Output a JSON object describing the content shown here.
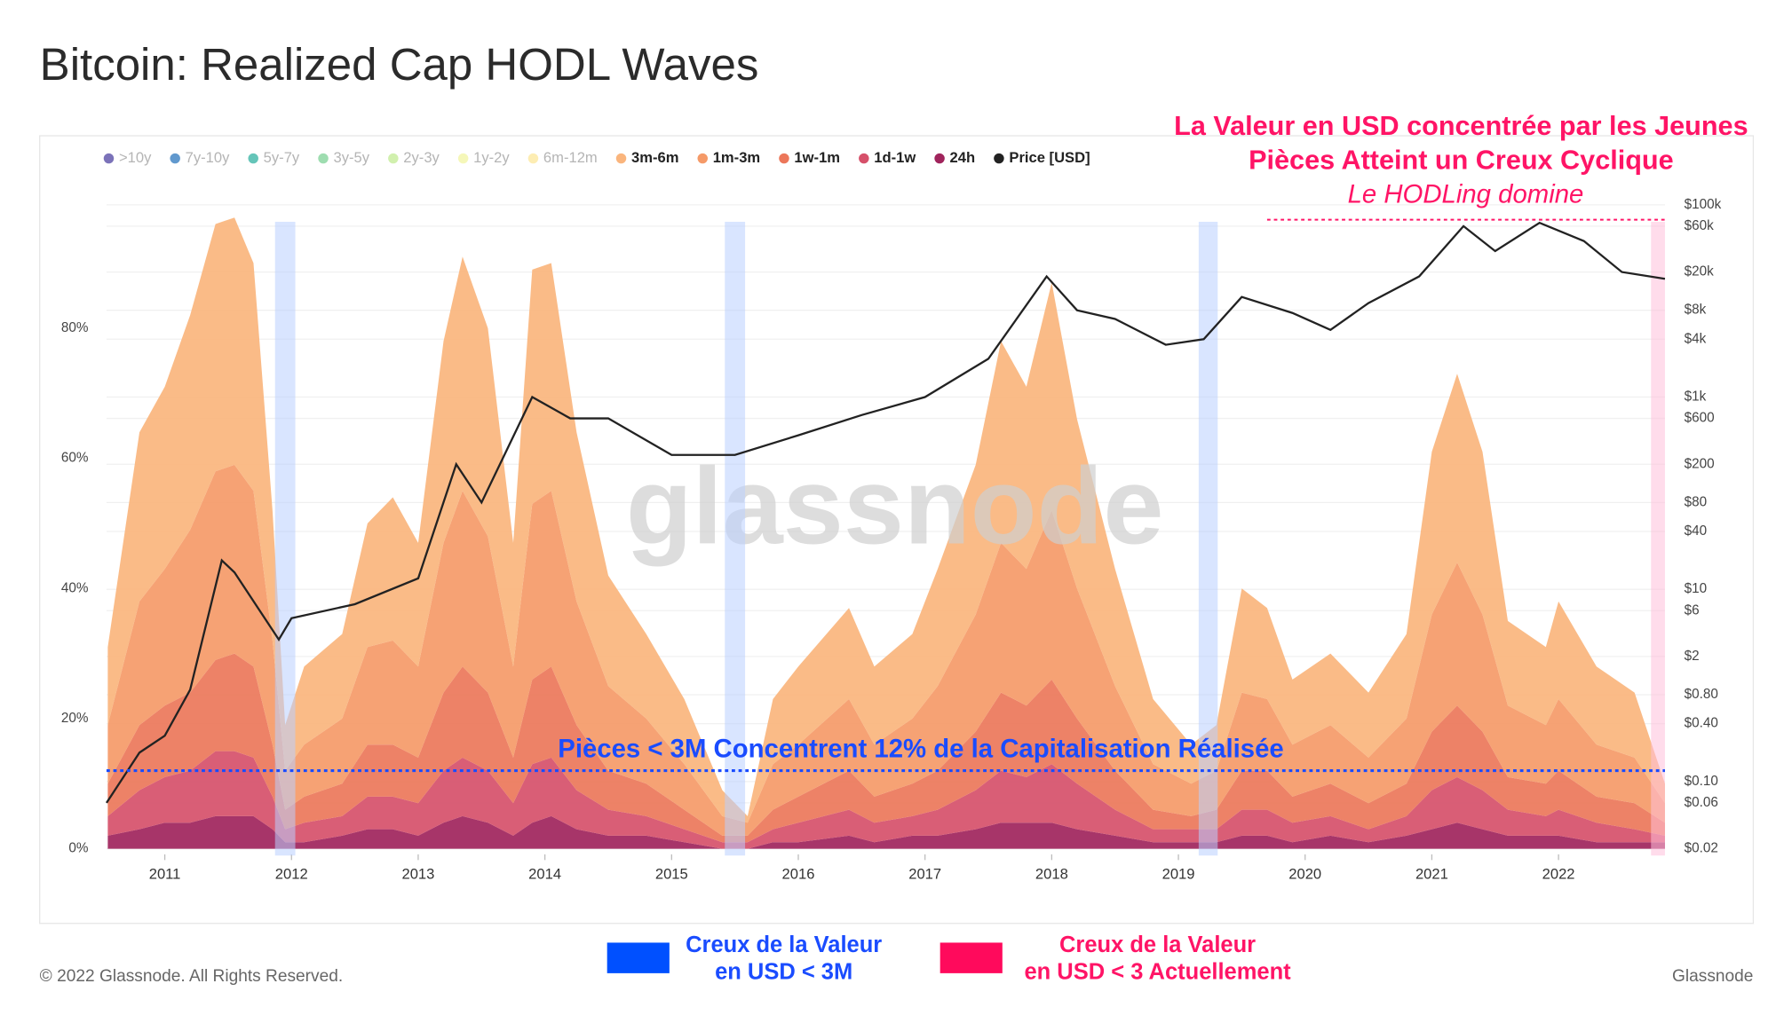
{
  "chart_data": {
    "type": "stacked_area",
    "title": "Bitcoin: Realized Cap HODL Waves",
    "watermark": "glassnode",
    "copyright": "© 2022 Glassnode. All Rights Reserved.",
    "brand": "Glassnode",
    "x": [
      2010.55,
      2010.8,
      2011.0,
      2011.2,
      2011.4,
      2011.55,
      2011.7,
      2011.85,
      2011.95,
      2012.1,
      2012.4,
      2012.6,
      2012.8,
      2013.0,
      2013.2,
      2013.35,
      2013.55,
      2013.75,
      2013.9,
      2014.05,
      2014.25,
      2014.5,
      2014.8,
      2015.1,
      2015.4,
      2015.6,
      2015.8,
      2016.0,
      2016.4,
      2016.6,
      2016.9,
      2017.1,
      2017.4,
      2017.6,
      2017.8,
      2018.0,
      2018.2,
      2018.5,
      2018.8,
      2019.1,
      2019.3,
      2019.5,
      2019.7,
      2019.9,
      2020.2,
      2020.5,
      2020.8,
      2021.0,
      2021.2,
      2021.4,
      2021.6,
      2021.9,
      2022.0,
      2022.3,
      2022.6,
      2022.84
    ],
    "inactive_legend": [
      {
        "name": ">10y",
        "color": "#5a4fa8"
      },
      {
        "name": "7y-10y",
        "color": "#3a7fc2"
      },
      {
        "name": "5y-7y",
        "color": "#3fb6a8"
      },
      {
        "name": "3y-5y",
        "color": "#86d49c"
      },
      {
        "name": "2y-3y",
        "color": "#c6ec9a"
      },
      {
        "name": "1y-2y",
        "color": "#f3f5a8"
      },
      {
        "name": "6m-12m",
        "color": "#fde9a0"
      }
    ],
    "series": [
      {
        "name": "3m-6m",
        "color": "#fab57d",
        "values": [
          12,
          26,
          28,
          33,
          38,
          38,
          35,
          20,
          7,
          12,
          13,
          19,
          22,
          19,
          31,
          36,
          32,
          19,
          36,
          35,
          26,
          17,
          13,
          10,
          4,
          1,
          10,
          12,
          14,
          12,
          13,
          18,
          23,
          31,
          28,
          35,
          26,
          18,
          10,
          6,
          7,
          16,
          14,
          10,
          11,
          10,
          13,
          25,
          29,
          25,
          13,
          12,
          15,
          12,
          10,
          3
        ]
      },
      {
        "name": "1m-3m",
        "color": "#f59a68",
        "values": [
          9,
          19,
          21,
          25,
          29,
          29,
          27,
          16,
          6,
          8,
          10,
          15,
          16,
          14,
          23,
          27,
          24,
          14,
          27,
          27,
          19,
          13,
          10,
          7,
          3,
          2,
          7,
          8,
          11,
          8,
          10,
          13,
          18,
          23,
          21,
          26,
          20,
          13,
          7,
          5,
          6,
          12,
          11,
          8,
          9,
          7,
          10,
          18,
          22,
          18,
          11,
          9,
          11,
          8,
          7,
          3
        ]
      },
      {
        "name": "1w-1m",
        "color": "#ec775a",
        "values": [
          5,
          10,
          11,
          12,
          14,
          15,
          14,
          8,
          3,
          4,
          5,
          8,
          8,
          7,
          12,
          14,
          12,
          7,
          13,
          14,
          10,
          6,
          5,
          3,
          1,
          1,
          3,
          4,
          6,
          4,
          5,
          6,
          9,
          12,
          11,
          13,
          10,
          6,
          3,
          2,
          3,
          6,
          6,
          4,
          5,
          4,
          5,
          9,
          11,
          9,
          5,
          5,
          6,
          4,
          4,
          2
        ]
      },
      {
        "name": "1d-1w",
        "color": "#d6506a",
        "values": [
          3,
          6,
          7,
          8,
          10,
          10,
          9,
          5,
          2,
          3,
          3,
          5,
          5,
          5,
          8,
          9,
          8,
          5,
          9,
          9,
          6,
          4,
          3,
          2,
          1,
          1,
          2,
          3,
          4,
          3,
          3,
          4,
          6,
          8,
          7,
          9,
          7,
          4,
          2,
          2,
          2,
          4,
          4,
          3,
          3,
          2,
          3,
          6,
          7,
          6,
          4,
          3,
          4,
          3,
          2,
          1
        ]
      },
      {
        "name": "24h",
        "color": "#a0245c",
        "values": [
          2,
          3,
          4,
          4,
          5,
          5,
          5,
          3,
          1,
          1,
          2,
          3,
          3,
          2,
          4,
          5,
          4,
          2,
          4,
          5,
          3,
          2,
          2,
          1,
          0,
          0,
          1,
          1,
          2,
          1,
          2,
          2,
          3,
          4,
          4,
          4,
          3,
          2,
          1,
          1,
          1,
          2,
          2,
          1,
          2,
          1,
          2,
          3,
          4,
          3,
          2,
          2,
          2,
          1,
          1,
          1
        ]
      }
    ],
    "price": {
      "name": "Price [USD]",
      "color": "#222222",
      "axis": "y2",
      "x": [
        2010.54,
        2010.8,
        2011.0,
        2011.2,
        2011.45,
        2011.55,
        2011.9,
        2012.0,
        2012.5,
        2013.0,
        2013.3,
        2013.5,
        2013.9,
        2014.2,
        2014.5,
        2015.0,
        2015.5,
        2016.0,
        2016.5,
        2017.0,
        2017.5,
        2017.96,
        2018.2,
        2018.5,
        2018.9,
        2019.2,
        2019.5,
        2019.9,
        2020.2,
        2020.5,
        2020.9,
        2021.25,
        2021.5,
        2021.85,
        2022.2,
        2022.5,
        2022.84
      ],
      "values": [
        0.06,
        0.2,
        0.3,
        0.9,
        20,
        15,
        3,
        5,
        7,
        13,
        200,
        80,
        1000,
        600,
        600,
        250,
        250,
        400,
        650,
        1000,
        2500,
        18000,
        8000,
        6500,
        3500,
        4000,
        11000,
        7500,
        5000,
        9500,
        18000,
        60000,
        33000,
        65000,
        42000,
        20000,
        17000
      ]
    },
    "xlim": [
      2010.54,
      2022.84
    ],
    "xticks": [
      2011,
      2012,
      2013,
      2014,
      2015,
      2016,
      2017,
      2018,
      2019,
      2020,
      2021,
      2022
    ],
    "ylim": [
      0,
      100
    ],
    "yticks": [
      {
        "value": 0,
        "label": "0%"
      },
      {
        "value": 20,
        "label": "20%"
      },
      {
        "value": 40,
        "label": "40%"
      },
      {
        "value": 60,
        "label": "60%"
      },
      {
        "value": 80,
        "label": "80%"
      }
    ],
    "y2lim": [
      0.02,
      100000
    ],
    "log_y2": true,
    "y2ticks": [
      {
        "value": 100000,
        "label": "$100k"
      },
      {
        "value": 60000,
        "label": "$60k"
      },
      {
        "value": 20000,
        "label": "$20k"
      },
      {
        "value": 8000,
        "label": "$8k"
      },
      {
        "value": 4000,
        "label": "$4k"
      },
      {
        "value": 1000,
        "label": "$1k"
      },
      {
        "value": 600,
        "label": "$600"
      },
      {
        "value": 200,
        "label": "$200"
      },
      {
        "value": 80,
        "label": "$80"
      },
      {
        "value": 40,
        "label": "$40"
      },
      {
        "value": 10,
        "label": "$10"
      },
      {
        "value": 6,
        "label": "$6"
      },
      {
        "value": 2,
        "label": "$2"
      },
      {
        "value": 0.8,
        "label": "$0.80"
      },
      {
        "value": 0.4,
        "label": "$0.40"
      },
      {
        "value": 0.1,
        "label": "$0.10"
      },
      {
        "value": 0.06,
        "label": "$0.06"
      },
      {
        "value": 0.02,
        "label": "$0.02"
      }
    ],
    "grid": true,
    "highlight_periods": [
      {
        "start": 2011.87,
        "end": 2012.03,
        "color": "#b9d0ff"
      },
      {
        "start": 2015.42,
        "end": 2015.58,
        "color": "#b9d0ff"
      },
      {
        "start": 2019.16,
        "end": 2019.31,
        "color": "#b9d0ff"
      },
      {
        "start": 2022.73,
        "end": 2022.84,
        "color": "#ffc0da"
      }
    ],
    "reference_line": {
      "value": 12,
      "color": "#1a4cff",
      "label": "Pièces < 3M Concentrent 12% de la Capitalisation Réalisée"
    },
    "reference_line_y2": {
      "value": 70000,
      "start": 2019.7,
      "end": 2022.84,
      "color": "#ff1466"
    },
    "annotation": {
      "color": "#ff1466",
      "lines": [
        "La Valeur en USD concentrée par les Jeunes",
        "Pièces Atteint un Creux Cyclique"
      ],
      "subtitle": "Le HODLing domine"
    },
    "footer_legend": [
      {
        "color": "#0050ff",
        "text_color": "#1a4cff",
        "lines": [
          "Creux de la Valeur",
          "en USD < 3M"
        ]
      },
      {
        "color": "#ff0a5c",
        "text_color": "#ff1466",
        "lines": [
          "Creux de la Valeur",
          "en USD < 3 Actuellement"
        ]
      }
    ]
  }
}
